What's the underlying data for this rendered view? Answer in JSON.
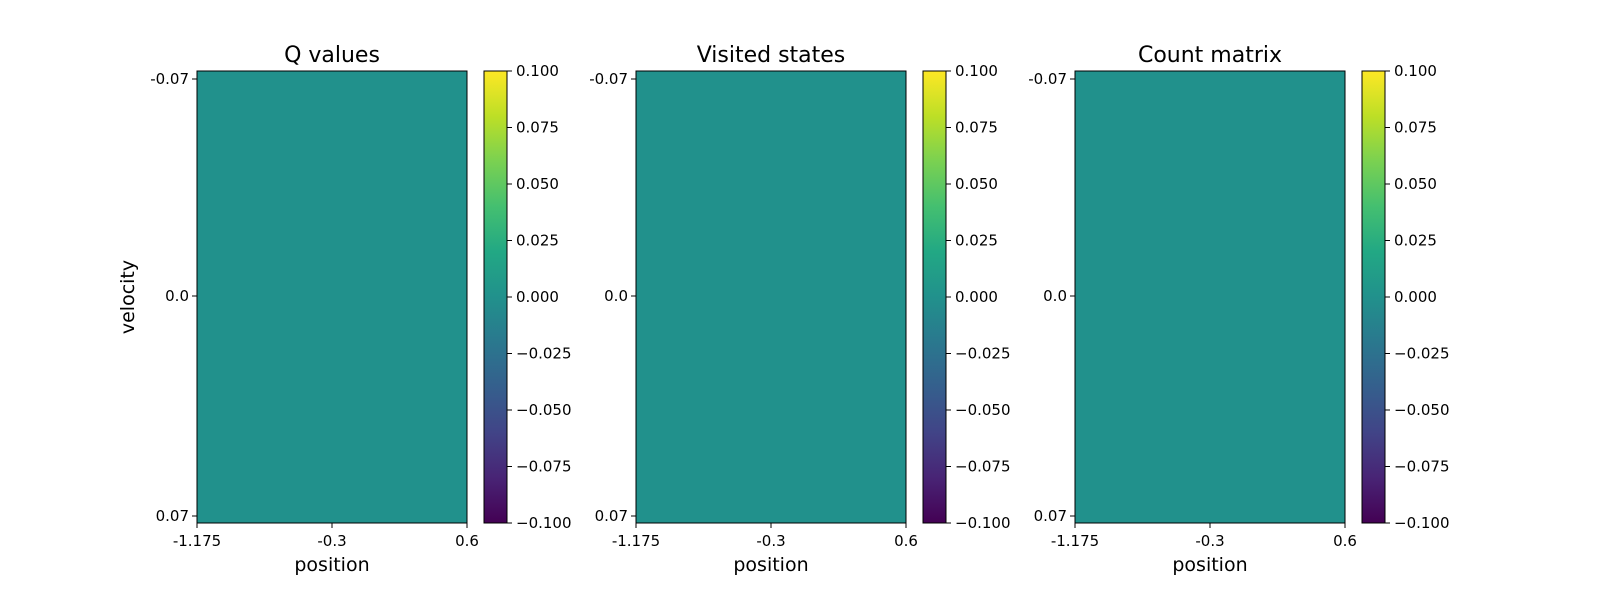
{
  "chart_data": [
    {
      "type": "heatmap",
      "title": "Q values",
      "xlabel": "position",
      "ylabel": "velocity",
      "x_ticks": [
        "-1.175",
        "-0.3",
        "0.6"
      ],
      "y_ticks": [
        "-0.07",
        "0.0",
        "0.07"
      ],
      "values": [
        [
          0
        ]
      ],
      "colorbar": {
        "colormap": "viridis",
        "range": [
          -0.1,
          0.1
        ],
        "ticks": [
          "0.100",
          "0.075",
          "0.050",
          "0.025",
          "0.000",
          "−0.025",
          "−0.050",
          "−0.075",
          "−0.100"
        ]
      }
    },
    {
      "type": "heatmap",
      "title": "Visited states",
      "xlabel": "position",
      "ylabel": "",
      "x_ticks": [
        "-1.175",
        "-0.3",
        "0.6"
      ],
      "y_ticks": [
        "-0.07",
        "0.0",
        "0.07"
      ],
      "values": [
        [
          0
        ]
      ],
      "colorbar": {
        "colormap": "viridis",
        "range": [
          -0.1,
          0.1
        ],
        "ticks": [
          "0.100",
          "0.075",
          "0.050",
          "0.025",
          "0.000",
          "−0.025",
          "−0.050",
          "−0.075",
          "−0.100"
        ]
      }
    },
    {
      "type": "heatmap",
      "title": "Count matrix",
      "xlabel": "position",
      "ylabel": "",
      "x_ticks": [
        "-1.175",
        "-0.3",
        "0.6"
      ],
      "y_ticks": [
        "-0.07",
        "0.0",
        "0.07"
      ],
      "values": [
        [
          0
        ]
      ],
      "colorbar": {
        "colormap": "viridis",
        "range": [
          -0.1,
          0.1
        ],
        "ticks": [
          "0.100",
          "0.075",
          "0.050",
          "0.025",
          "0.000",
          "−0.025",
          "−0.050",
          "−0.075",
          "−0.100"
        ]
      }
    }
  ]
}
